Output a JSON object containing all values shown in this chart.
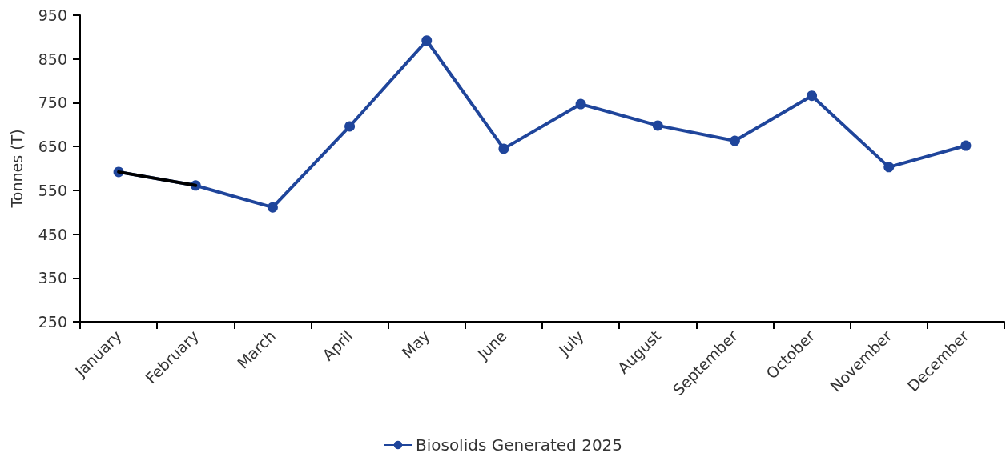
{
  "chart_data": {
    "type": "line",
    "ylabel": "Tonnes (T)",
    "categories": [
      "January",
      "February",
      "March",
      "April",
      "May",
      "June",
      "July",
      "August",
      "September",
      "October",
      "November",
      "December"
    ],
    "series": [
      {
        "name": "Biosolids Generated 2025",
        "color": "#1f459b",
        "values": [
          592,
          561,
          511,
          696,
          892,
          645,
          747,
          698,
          663,
          766,
          603,
          652
        ]
      },
      {
        "color": "#000000",
        "marker": "none",
        "values": [
          592,
          561,
          null,
          null,
          null,
          null,
          null,
          null,
          null,
          null,
          null,
          null
        ]
      }
    ],
    "ylim": [
      250,
      950
    ],
    "yticks": [
      250,
      350,
      450,
      550,
      650,
      750,
      850,
      950
    ],
    "grid": false,
    "legend": "bottom",
    "marker": "circle",
    "line_style": "solid"
  }
}
